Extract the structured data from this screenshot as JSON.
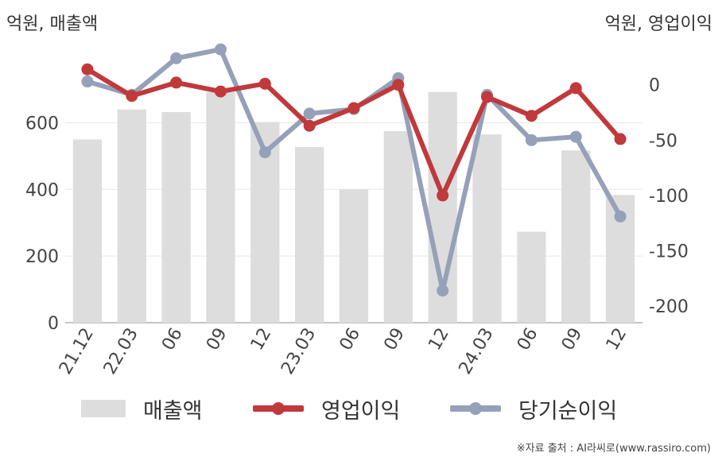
{
  "chart_data": {
    "type": "bar+line",
    "left_axis_unit": "억원, 매출액",
    "right_axis_unit": "억원, 영업이익",
    "categories": [
      "21.12",
      "22.03",
      "06",
      "09",
      "12",
      "23.03",
      "06",
      "09",
      "12",
      "24.03",
      "06",
      "09",
      "12"
    ],
    "left_axis": {
      "ticks": [
        "0",
        "200",
        "400",
        "600"
      ],
      "range": [
        0,
        830
      ]
    },
    "right_axis": {
      "ticks": [
        "0",
        "-50",
        "-100",
        "-150",
        "-200"
      ],
      "range": [
        -215,
        35
      ]
    },
    "series": [
      {
        "name": "매출액",
        "kind": "bar",
        "axis": "left",
        "color": "#dddddd",
        "values": [
          550,
          640,
          632,
          692,
          602,
          527,
          400,
          575,
          692,
          565,
          273,
          517,
          383
        ]
      },
      {
        "name": "영업이익",
        "kind": "line",
        "axis": "right",
        "color": "#c0393b",
        "values": [
          14,
          -10,
          2,
          -6,
          1,
          -37,
          -21,
          0,
          -100,
          -11,
          -28,
          -3,
          -49
        ]
      },
      {
        "name": "당기순이익",
        "kind": "line",
        "axis": "right",
        "color": "#94a1b8",
        "values": [
          3,
          -9,
          24,
          32,
          -61,
          -26,
          -22,
          6,
          -186,
          -9,
          -50,
          -47,
          -119
        ]
      }
    ],
    "grid": true,
    "legend_position": "bottom"
  },
  "legend": [
    {
      "label": "매출액",
      "kind": "bar",
      "color": "#dddddd"
    },
    {
      "label": "영업이익",
      "kind": "line",
      "color": "#c0393b"
    },
    {
      "label": "당기순이익",
      "kind": "line",
      "color": "#94a1b8"
    }
  ],
  "source": "※자료 출처 : AI라씨로(www.rassiro.com)"
}
